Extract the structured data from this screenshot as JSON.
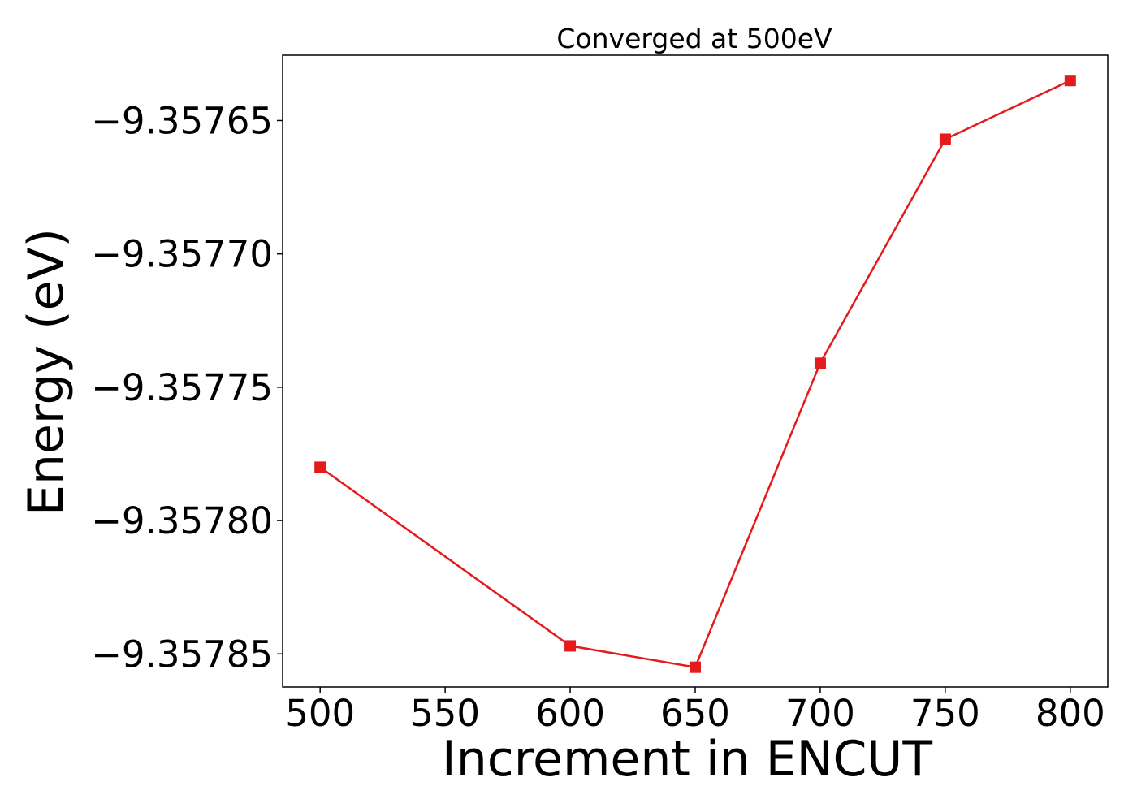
{
  "chart_data": {
    "type": "line",
    "title": "Converged at 500eV",
    "xlabel": "Increment in ENCUT",
    "ylabel": "Energy (eV)",
    "x": [
      500,
      600,
      650,
      700,
      750,
      800
    ],
    "series": [
      {
        "values": [
          -9.35778,
          -9.357847,
          -9.357855,
          -9.357741,
          -9.357657,
          -9.357635
        ],
        "color": "#e41a1c",
        "marker": "square"
      }
    ],
    "xlim": [
      485,
      815
    ],
    "ylim": [
      -9.3578624,
      -9.3576255
    ],
    "xticks": [
      500,
      550,
      600,
      650,
      700,
      750,
      800
    ],
    "xtick_labels": [
      "500",
      "550",
      "600",
      "650",
      "700",
      "750",
      "800"
    ],
    "yticks": [
      -9.35765,
      -9.3577,
      -9.35775,
      -9.3578,
      -9.35785
    ],
    "ytick_labels": [
      "−9.35765",
      "−9.35770",
      "−9.35775",
      "−9.35780",
      "−9.35785"
    ],
    "grid": false,
    "legend": "none"
  }
}
